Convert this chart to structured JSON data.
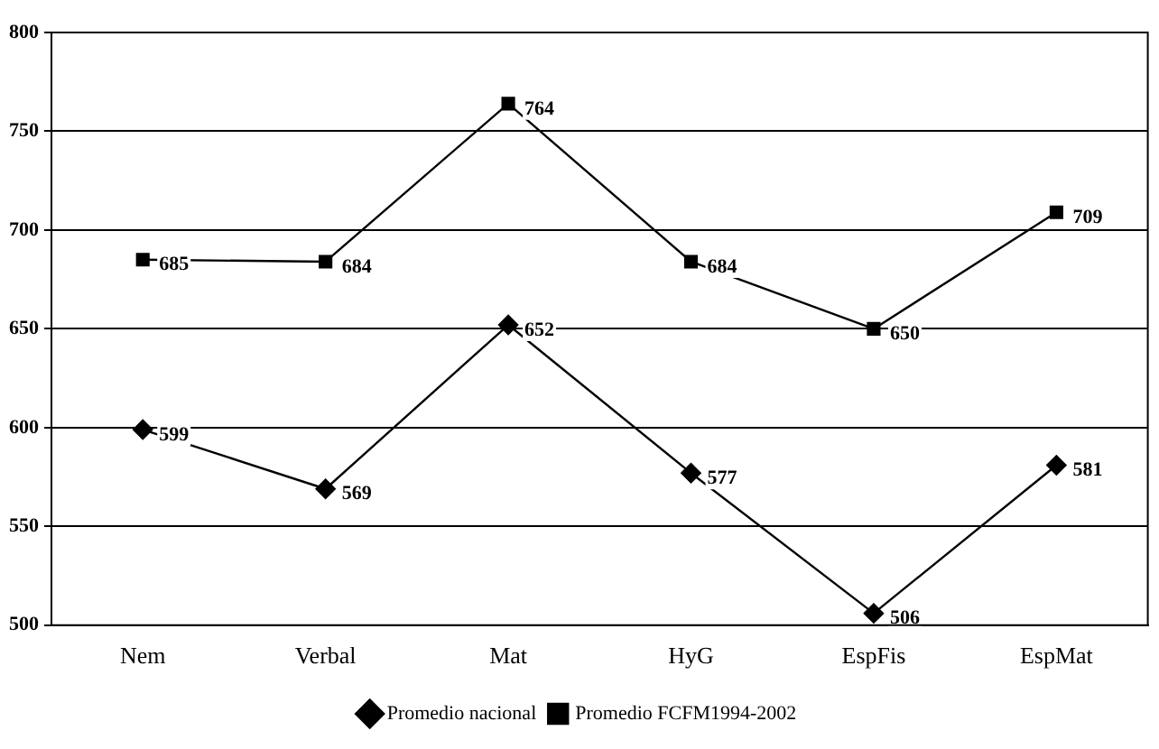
{
  "chart_data": {
    "type": "line",
    "categories": [
      "Nem",
      "Verbal",
      "Mat",
      "HyG",
      "EspFis",
      "EspMat"
    ],
    "series": [
      {
        "name": "Promedio nacional",
        "color": "#000000",
        "marker": "diamond",
        "values": [
          599,
          569,
          652,
          577,
          506,
          581
        ]
      },
      {
        "name": "Promedio FCFM1994-2002",
        "color": "#000000",
        "marker": "square",
        "values": [
          685,
          684,
          764,
          684,
          650,
          709
        ]
      }
    ],
    "ylim": [
      500,
      800
    ],
    "yticks": [
      500,
      550,
      600,
      650,
      700,
      750,
      800
    ],
    "grid": "y",
    "legend": "bottom",
    "data_labels": true,
    "line_style": "solid"
  }
}
